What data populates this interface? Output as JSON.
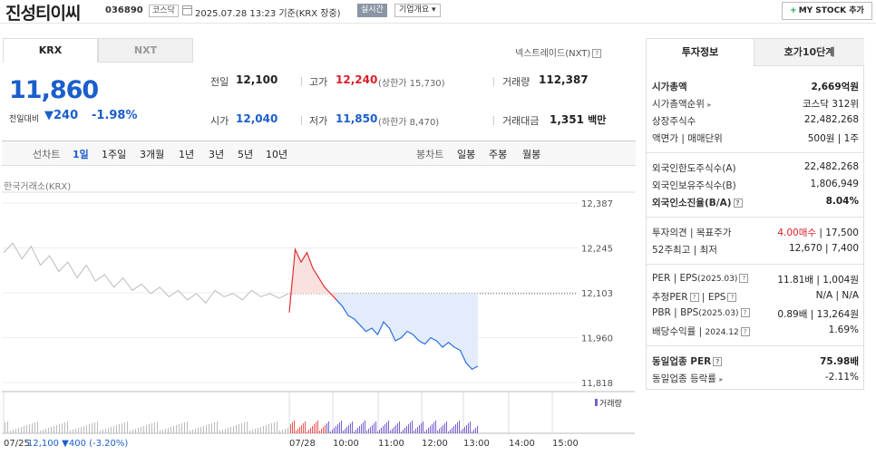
{
  "header": {
    "company": "진성티이씨",
    "code": "036890",
    "market": "코스닥",
    "datetime": "2025.07.28 13:23 기준(KRX 장중)",
    "realtime": "실시간",
    "overview": "기업개요",
    "mystock": "MY STOCK 추가"
  },
  "exchange_tabs": [
    "KRX",
    "NXT"
  ],
  "nxt_link": "넥스트레이드(NXT)",
  "price": {
    "current": "11,860",
    "change_label": "전일대비",
    "change": "240",
    "change_pct": "-1.98%"
  },
  "info": {
    "prev_label": "전일",
    "prev": "12,100",
    "high_label": "고가",
    "high": "12,240",
    "upper_limit": "(상한가 15,730)",
    "volume_label": "거래량",
    "volume": "112,387",
    "open_label": "시가",
    "open": "12,040",
    "low_label": "저가",
    "low": "11,850",
    "lower_limit": "(하한가 8,470)",
    "amount_label": "거래대금",
    "amount": "1,351",
    "amount_unit": "백만"
  },
  "chart_tabs": {
    "line_label": "선차트",
    "line": [
      "1일",
      "1주일",
      "3개월",
      "1년",
      "3년",
      "5년",
      "10년"
    ],
    "candle_label": "봉차트",
    "candle": [
      "일봉",
      "주봉",
      "월봉"
    ],
    "active": "1일"
  },
  "chart_source": "한국거래소(KRX)",
  "chart_data": {
    "type": "line",
    "y_ticks": [
      "12,387",
      "12,245",
      "12,103",
      "11,960",
      "11,818"
    ],
    "x_ticks": [
      "07/25",
      "07/28",
      "10:00",
      "11:00",
      "12:00",
      "13:00",
      "14:00",
      "15:00"
    ],
    "prev_close": 12100,
    "ylim": [
      11818,
      12387
    ],
    "series": [
      {
        "values": [
          12230,
          12260,
          12210,
          12250,
          12190,
          12220,
          12170,
          12200,
          12150,
          12190,
          12140,
          12160,
          12120,
          12150,
          12110,
          12130,
          12100,
          12120,
          12090,
          12110,
          12080,
          12100,
          12070,
          12110,
          12090,
          12100,
          12080,
          12110,
          12090,
          12100,
          12085,
          12100
        ]
      },
      {
        "values": [
          12040,
          12240,
          12200,
          12230,
          12180,
          12150,
          12120,
          12100,
          12080,
          12060,
          12030,
          12020,
          12000,
          11980,
          11990,
          11970,
          12010,
          11990,
          11950,
          11960,
          11980,
          11970,
          11950,
          11940,
          11960,
          11950,
          11930,
          11945,
          11930,
          11920,
          11880,
          11860,
          11870
        ]
      }
    ],
    "volume_label": "거래량"
  },
  "footer": {
    "date": "07/25",
    "price": "12,100",
    "change": "▼400",
    "pct": "(-3.20%)"
  },
  "right_tabs": [
    "투자정보",
    "호가10단계"
  ],
  "invest": {
    "mcap_label": "시가총액",
    "mcap": "2,669억원",
    "mcap_rank_label": "시가총액순위",
    "mcap_rank": "코스닥 312위",
    "shares_label": "상장주식수",
    "shares": "22,482,268",
    "par_label": "액면가",
    "unit_label": "매매단위",
    "par": "500원",
    "unit": "1주",
    "foreign_limit_label": "외국인한도주식수(A)",
    "foreign_limit": "22,482,268",
    "foreign_hold_label": "외국인보유주식수(B)",
    "foreign_hold": "1,806,949",
    "foreign_ratio_label": "외국인소진율(B/A)",
    "foreign_ratio": "8.04%",
    "opinion_label": "투자의견",
    "target_label": "목표주가",
    "opinion": "4.00매수",
    "target": "17,500",
    "w52_label": "52주최고",
    "w52_low_label": "최저",
    "w52_high": "12,670",
    "w52_low": "7,400",
    "per_label": "PER",
    "eps_label": "EPS",
    "per_date": "(2025.03)",
    "per": "11.81배",
    "eps": "1,004원",
    "est_label": "추정PER",
    "est_eps_label": "EPS",
    "est_per": "N/A",
    "est_eps": "N/A",
    "pbr_label": "PBR",
    "bps_label": "BPS",
    "pbr_date": "(2025.03)",
    "pbr": "0.89배",
    "bps": "13,264원",
    "div_label": "배당수익률",
    "div_date": "2024.12",
    "div": "1.69%",
    "ind_per_label": "동일업종 PER",
    "ind_per": "75.98배",
    "ind_rate_label": "동일업종 등락률",
    "ind_rate": "-2.11%"
  }
}
